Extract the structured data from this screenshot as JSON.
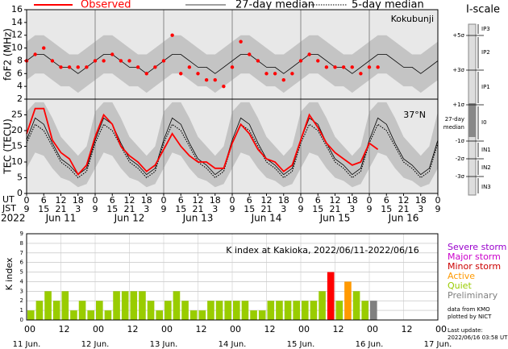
{
  "chart_data": [
    {
      "type": "dots_lines",
      "ylabel": "foF2 (MHz)",
      "station": "Kokubunji",
      "xlim": [
        0,
        144
      ],
      "ylim": [
        2,
        16
      ],
      "yticks": [
        2,
        4,
        6,
        8,
        10,
        12,
        14,
        16
      ],
      "x": [
        0,
        3,
        6,
        9,
        12,
        15,
        18,
        21,
        24,
        27,
        30,
        33,
        36,
        39,
        42,
        45,
        48,
        51,
        54,
        57,
        60,
        63,
        66,
        69,
        72,
        75,
        78,
        81,
        84,
        87,
        90,
        93,
        96,
        99,
        102,
        105,
        108,
        111,
        114,
        117,
        120,
        123,
        126,
        129,
        132,
        135,
        138,
        141,
        144
      ],
      "band": {
        "color": "#c4c4c4",
        "low": [
          5,
          6,
          6,
          5,
          4,
          4,
          3,
          4,
          5,
          6,
          6,
          5,
          4,
          4,
          3,
          4,
          5,
          6,
          6,
          5,
          4,
          4,
          3,
          4,
          5,
          6,
          6,
          5,
          4,
          4,
          3,
          4,
          5,
          6,
          6,
          5,
          4,
          4,
          3,
          4,
          5,
          6,
          6,
          5,
          4,
          4,
          3,
          4,
          5
        ],
        "high": [
          11,
          12,
          12,
          11,
          10,
          9,
          9,
          10,
          11,
          12,
          12,
          11,
          10,
          9,
          9,
          10,
          11,
          12,
          12,
          11,
          10,
          9,
          9,
          10,
          11,
          12,
          12,
          11,
          10,
          9,
          9,
          10,
          11,
          12,
          12,
          11,
          10,
          9,
          9,
          10,
          11,
          12,
          12,
          11,
          10,
          9,
          9,
          10,
          11
        ]
      },
      "series": [
        {
          "name": "27-day median",
          "color": "#000000",
          "style": "solid",
          "values": [
            8,
            9,
            9,
            8,
            7,
            7,
            6,
            7,
            8,
            9,
            9,
            8,
            7,
            7,
            6,
            7,
            8,
            9,
            9,
            8,
            7,
            7,
            6,
            7,
            8,
            9,
            9,
            8,
            7,
            7,
            6,
            7,
            8,
            9,
            9,
            8,
            7,
            7,
            6,
            7,
            8,
            9,
            9,
            8,
            7,
            7,
            6,
            7,
            8
          ]
        },
        {
          "name": "Observed",
          "color": "#ff0000",
          "style": "dots",
          "values": [
            8,
            9,
            10,
            8,
            7,
            7,
            7,
            7,
            8,
            8,
            9,
            8,
            8,
            7,
            6,
            7,
            8,
            12,
            6,
            7,
            6,
            5,
            5,
            4,
            7,
            11,
            9,
            8,
            6,
            6,
            5,
            6,
            8,
            9,
            8,
            7,
            7,
            7,
            7,
            6,
            7,
            7,
            null,
            null,
            null,
            null,
            null,
            null,
            null
          ]
        }
      ]
    },
    {
      "type": "lines",
      "ylabel": "TEC (TECU)",
      "latitude": "37°N",
      "xlim": [
        0,
        144
      ],
      "ylim": [
        0,
        30
      ],
      "yticks": [
        0,
        5,
        10,
        15,
        20,
        25
      ],
      "x": [
        0,
        3,
        6,
        9,
        12,
        15,
        18,
        21,
        24,
        27,
        30,
        33,
        36,
        39,
        42,
        45,
        48,
        51,
        54,
        57,
        60,
        63,
        66,
        69,
        72,
        75,
        78,
        81,
        84,
        87,
        90,
        93,
        96,
        99,
        102,
        105,
        108,
        111,
        114,
        117,
        120,
        123,
        126,
        129,
        132,
        135,
        138,
        141,
        144
      ],
      "xticks": [
        0,
        6,
        12,
        18,
        {
          "value": 24,
          "label": "0"
        },
        {
          "value": 30,
          "label": "6"
        },
        {
          "value": 36,
          "label": "12"
        },
        {
          "value": 42,
          "label": "18"
        },
        {
          "value": 48,
          "label": "0"
        },
        {
          "value": 54,
          "label": "6"
        },
        {
          "value": 60,
          "label": "12"
        },
        {
          "value": 66,
          "label": "18"
        },
        {
          "value": 72,
          "label": "0"
        },
        {
          "value": 78,
          "label": "6"
        },
        {
          "value": 84,
          "label": "12"
        },
        {
          "value": 90,
          "label": "18"
        },
        {
          "value": 96,
          "label": "0"
        },
        {
          "value": 102,
          "label": "6"
        },
        {
          "value": 108,
          "label": "12"
        },
        {
          "value": 114,
          "label": "18"
        },
        {
          "value": 120,
          "label": "0"
        },
        {
          "value": 126,
          "label": "6"
        },
        {
          "value": 132,
          "label": "12"
        },
        {
          "value": 138,
          "label": "18"
        },
        {
          "value": 144,
          "label": "0"
        }
      ],
      "jst_labels": [
        "9",
        "15",
        "21",
        "3",
        "9",
        "15",
        "21",
        "3",
        "9",
        "15",
        "21",
        "3",
        "9",
        "15",
        "21",
        "3",
        "9",
        "15",
        "21",
        "3",
        "9",
        "15",
        "21",
        "3",
        "9"
      ],
      "ut_title": "UT",
      "jst_title": "JST",
      "year": "2022",
      "day_labels": [
        "Jun 11",
        "Jun 12",
        "Jun 13",
        "Jun 14",
        "Jun 15",
        "Jun 16"
      ],
      "band": {
        "color": "#c4c4c4",
        "low": [
          8,
          13,
          12,
          8,
          5,
          4,
          2,
          3,
          8,
          13,
          12,
          8,
          5,
          4,
          2,
          3,
          8,
          13,
          12,
          8,
          5,
          4,
          2,
          3,
          8,
          13,
          12,
          8,
          5,
          4,
          2,
          3,
          8,
          13,
          12,
          8,
          5,
          4,
          2,
          3,
          8,
          13,
          12,
          8,
          5,
          4,
          2,
          3,
          8
        ],
        "high": [
          26,
          29,
          29,
          24,
          18,
          15,
          12,
          15,
          26,
          29,
          29,
          24,
          18,
          15,
          12,
          15,
          26,
          29,
          29,
          24,
          18,
          15,
          12,
          15,
          26,
          29,
          29,
          24,
          18,
          15,
          12,
          15,
          26,
          29,
          29,
          24,
          18,
          15,
          12,
          15,
          26,
          29,
          29,
          24,
          18,
          15,
          12,
          15,
          26
        ]
      },
      "series": [
        {
          "name": "27-day median",
          "color": "#000000",
          "style": "solid",
          "values": [
            17,
            24,
            22,
            16,
            11,
            9,
            6,
            8,
            17,
            24,
            22,
            16,
            11,
            9,
            6,
            8,
            17,
            24,
            22,
            16,
            11,
            9,
            6,
            8,
            17,
            24,
            22,
            16,
            11,
            9,
            6,
            8,
            17,
            24,
            22,
            16,
            11,
            9,
            6,
            8,
            17,
            24,
            22,
            16,
            11,
            9,
            6,
            8,
            17
          ]
        },
        {
          "name": "5-day median",
          "color": "#000000",
          "style": "dotted",
          "values": [
            16,
            22,
            20,
            15,
            10,
            8,
            5,
            7,
            16,
            22,
            20,
            15,
            10,
            8,
            5,
            7,
            16,
            22,
            20,
            15,
            10,
            8,
            5,
            7,
            16,
            22,
            20,
            15,
            10,
            8,
            5,
            7,
            16,
            22,
            20,
            15,
            10,
            8,
            5,
            7,
            16,
            22,
            20,
            15,
            10,
            8,
            5,
            7,
            16
          ]
        },
        {
          "name": "Observed",
          "color": "#ff0000",
          "style": "thick",
          "values": [
            19,
            27,
            27,
            17,
            13,
            11,
            6,
            9,
            18,
            25,
            22,
            15,
            12,
            10,
            7,
            9,
            14,
            19,
            15,
            12,
            10,
            10,
            8,
            8,
            16,
            22,
            19,
            14,
            11,
            10,
            7,
            9,
            17,
            25,
            21,
            16,
            13,
            11,
            9,
            10,
            16,
            14,
            null,
            null,
            null,
            null,
            null,
            null,
            null
          ]
        }
      ]
    },
    {
      "type": "bar",
      "title": "K index at Kakioka, 2022/06/11-2022/06/16",
      "ylabel": "K index",
      "xlim": [
        0,
        144
      ],
      "ylim": [
        0,
        9
      ],
      "yticks": [
        0,
        1,
        2,
        3,
        4,
        5,
        6,
        7,
        8,
        9
      ],
      "bar_width": 3,
      "x": [
        0,
        3,
        6,
        9,
        12,
        15,
        18,
        21,
        24,
        27,
        30,
        33,
        36,
        39,
        42,
        45,
        48,
        51,
        54,
        57,
        60,
        63,
        66,
        69,
        72,
        75,
        78,
        81,
        84,
        87,
        90,
        93,
        96,
        99,
        102,
        105,
        108,
        111,
        114,
        117,
        120
      ],
      "values": [
        1,
        2,
        3,
        2,
        3,
        1,
        2,
        1,
        2,
        1,
        3,
        3,
        3,
        3,
        2,
        1,
        2,
        3,
        2,
        1,
        1,
        2,
        2,
        2,
        2,
        2,
        1,
        1,
        2,
        2,
        2,
        2,
        2,
        2,
        3,
        5,
        2,
        4,
        3,
        2,
        2
      ],
      "colors": [
        "#99cc00",
        "#99cc00",
        "#99cc00",
        "#99cc00",
        "#99cc00",
        "#99cc00",
        "#99cc00",
        "#99cc00",
        "#99cc00",
        "#99cc00",
        "#99cc00",
        "#99cc00",
        "#99cc00",
        "#99cc00",
        "#99cc00",
        "#99cc00",
        "#99cc00",
        "#99cc00",
        "#99cc00",
        "#99cc00",
        "#99cc00",
        "#99cc00",
        "#99cc00",
        "#99cc00",
        "#99cc00",
        "#99cc00",
        "#99cc00",
        "#99cc00",
        "#99cc00",
        "#99cc00",
        "#99cc00",
        "#99cc00",
        "#99cc00",
        "#99cc00",
        "#99cc00",
        "#ff0000",
        "#99cc00",
        "#ff9900",
        "#99cc00",
        "#99cc00",
        "#808080"
      ],
      "xticks": [
        {
          "value": 0,
          "label": "00"
        },
        12,
        {
          "value": 24,
          "label": "00"
        },
        {
          "value": 36,
          "label": "12"
        },
        {
          "value": 48,
          "label": "00"
        },
        {
          "value": 60,
          "label": "12"
        },
        {
          "value": 72,
          "label": "00"
        },
        {
          "value": 84,
          "label": "12"
        },
        {
          "value": 96,
          "label": "00"
        },
        {
          "value": 108,
          "label": "12"
        },
        {
          "value": 120,
          "label": "00"
        },
        {
          "value": 132,
          "label": "12"
        },
        {
          "value": 144,
          "label": "00"
        }
      ],
      "date_labels": [
        "11 Jun.",
        "12 Jun.",
        "13 Jun.",
        "14 Jun.",
        "15 Jun.",
        "16 Jun.",
        "17 Jun."
      ],
      "legend": [
        {
          "name": "Severe storm",
          "color": "#9900cc"
        },
        {
          "name": "Major storm",
          "color": "#cc00cc"
        },
        {
          "name": "Minor storm",
          "color": "#cc0000"
        },
        {
          "name": "Active",
          "color": "#ff9900"
        },
        {
          "name": "Quiet",
          "color": "#99cc00"
        },
        {
          "name": "Preliminary",
          "color": "#808080"
        }
      ],
      "credits": [
        "data from KMO",
        "plotted by NICT"
      ],
      "update_title": "Last update:",
      "update": "2022/06/16 03:58 UT"
    }
  ],
  "iscale": {
    "title": "I-scale",
    "sigma_labels": [
      "+5σ",
      "+3σ",
      "+1σ",
      "-1σ",
      "-2σ",
      "-3σ"
    ],
    "median_label": [
      "27-day",
      "median"
    ],
    "levels": [
      "IP3",
      "IP2",
      "IP1",
      "I0",
      "IN1",
      "IN2",
      "IN3"
    ]
  }
}
